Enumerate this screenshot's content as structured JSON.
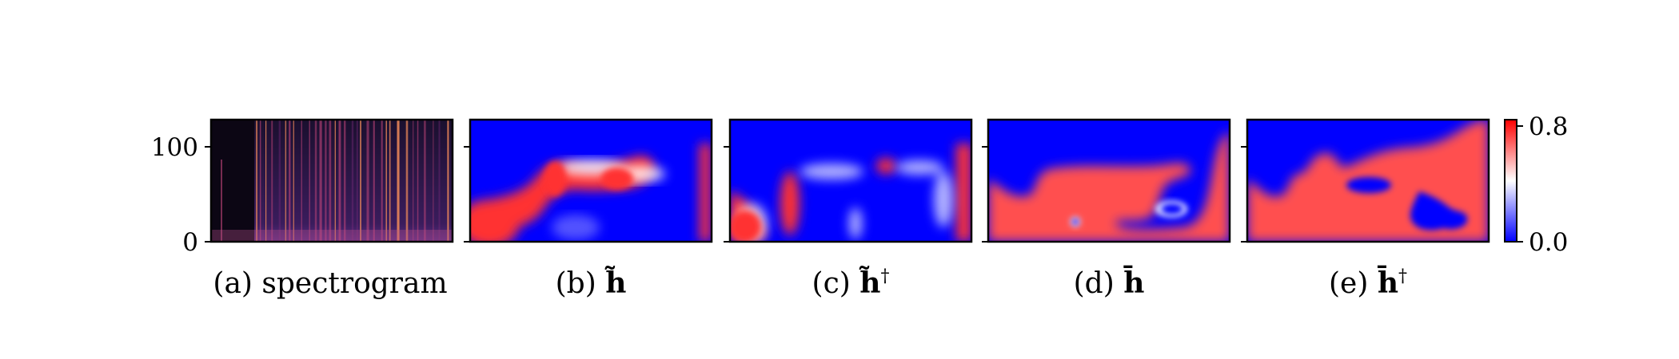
{
  "chart_data": [
    {
      "type": "heatmap",
      "panel": "(a)",
      "caption": "(a) spectrogram",
      "y_ticks": [
        "0",
        "100"
      ],
      "yticks_values": [
        0,
        100
      ],
      "ylim": [
        0,
        128
      ],
      "colormap": "magma",
      "pattern": "dark background with many vertical bright bands (onsets); first ~18% of the time axis near-silent"
    },
    {
      "type": "heatmap",
      "panel": "(b)",
      "caption_prefix": "(b) ",
      "caption_symbol": "h̃",
      "caption_sup": "",
      "colormap": "bwr",
      "pattern": "mostly blue; red blob bottom-left; red ridge across middle from left to center-right; thin red band on right edge"
    },
    {
      "type": "heatmap",
      "panel": "(c)",
      "caption_prefix": "(c) ",
      "caption_symbol": "h̃",
      "caption_sup": "†",
      "colormap": "bwr",
      "pattern": "mostly blue; red blob bottom-left; red vertical streak left-center; small red spot top-center; red strip right edge"
    },
    {
      "type": "heatmap",
      "panel": "(d)",
      "caption_prefix": "(d) ",
      "caption_symbol": "h̄",
      "caption_sup": "",
      "colormap": "bwr",
      "pattern": "blue top; red lower half with irregular upper boundary; white/blue bay near bottom-center and small blue dot bottom-left"
    },
    {
      "type": "heatmap",
      "panel": "(e)",
      "caption_prefix": "(e) ",
      "caption_symbol": "h̄",
      "caption_sup": "†",
      "colormap": "bwr",
      "pattern": "blue top-left; red mass covering most of the right and bottom; blue islands in the middle-right"
    }
  ],
  "colorbar": {
    "ticks": [
      "0.0",
      "0.8"
    ],
    "values": [
      0.0,
      0.8
    ],
    "colors": [
      "#0000ff",
      "#ffffff",
      "#ff0000"
    ]
  }
}
